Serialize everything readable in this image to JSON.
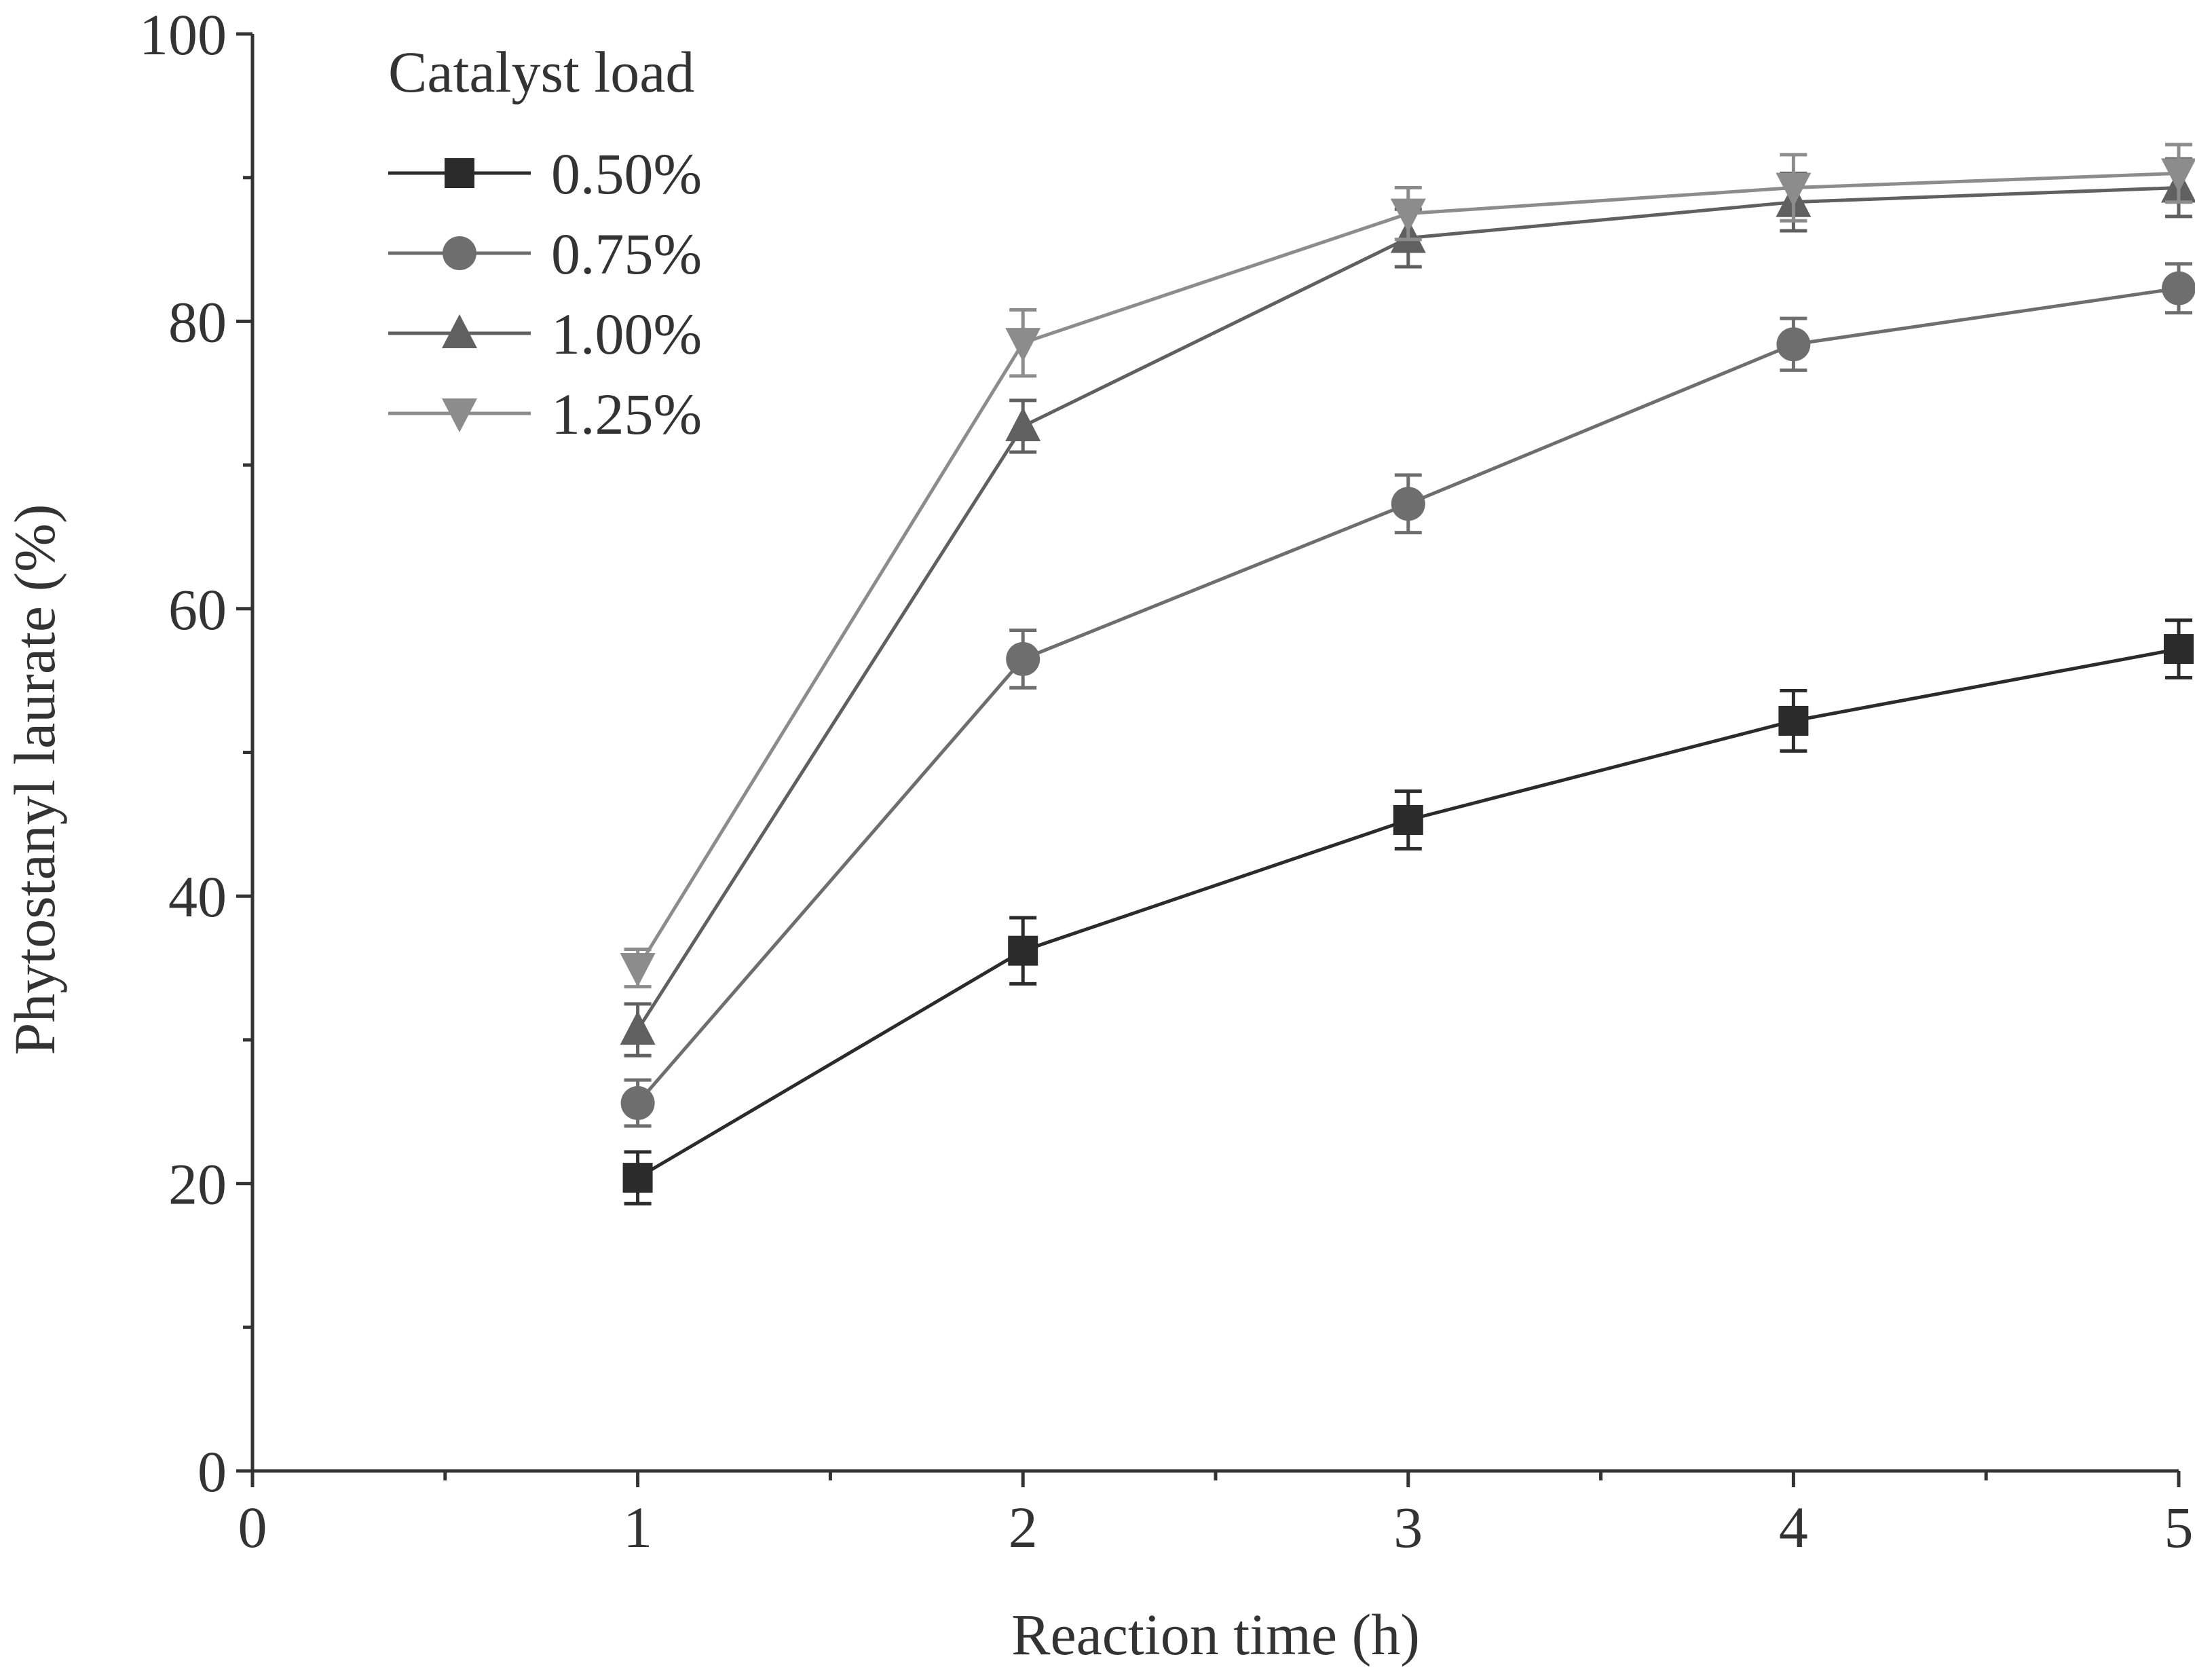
{
  "chart_data": {
    "type": "line",
    "title": "",
    "xlabel": "Reaction time (h)",
    "ylabel": "Phytostanyl laurate (%)",
    "xlim": [
      0,
      5
    ],
    "ylim": [
      0,
      100
    ],
    "xticks": [
      0,
      1,
      2,
      3,
      4,
      5
    ],
    "yticks": [
      0,
      20,
      40,
      60,
      80,
      100
    ],
    "x_tick_labels": [
      "0",
      "1",
      "2",
      "3",
      "4",
      "5"
    ],
    "y_tick_labels": [
      "0",
      "20",
      "40",
      "60",
      "80",
      "100"
    ],
    "grid": false,
    "legend": {
      "title": "Catalyst load",
      "placement": "top-left"
    },
    "x": [
      1,
      2,
      3,
      4,
      5
    ],
    "series": [
      {
        "name": "0.50%",
        "marker": "square",
        "color": "#2b2b2b",
        "values": [
          20.4,
          36.2,
          45.3,
          52.2,
          57.2
        ],
        "errors": [
          1.8,
          2.3,
          2.0,
          2.1,
          2.0
        ]
      },
      {
        "name": "0.75%",
        "marker": "circle",
        "color": "#6e6e6e",
        "values": [
          25.6,
          56.5,
          67.3,
          78.4,
          82.3
        ],
        "errors": [
          1.6,
          2.0,
          2.0,
          1.8,
          1.7
        ]
      },
      {
        "name": "1.00%",
        "marker": "triangle-up",
        "color": "#606060",
        "values": [
          30.7,
          72.7,
          85.8,
          88.3,
          89.3
        ],
        "errors": [
          1.8,
          1.8,
          2.0,
          2.0,
          2.0
        ]
      },
      {
        "name": "1.25%",
        "marker": "triangle-down",
        "color": "#8c8c8c",
        "values": [
          35.0,
          78.5,
          87.5,
          89.3,
          90.3
        ],
        "errors": [
          1.3,
          2.3,
          1.8,
          2.3,
          2.0
        ]
      }
    ]
  }
}
